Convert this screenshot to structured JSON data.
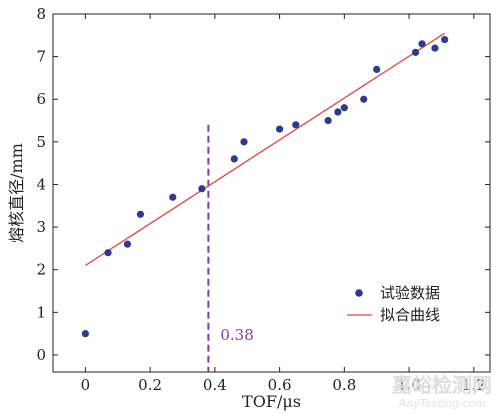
{
  "chart_data": {
    "type": "scatter",
    "xlabel": "TOF/μs",
    "ylabel": "熔核直径/mm",
    "xlim": [
      -0.1,
      1.25
    ],
    "ylim": [
      -0.4,
      8
    ],
    "xticks": [
      0,
      0.2,
      0.4,
      0.6,
      0.8,
      1.0,
      1.2
    ],
    "xtick_labels": [
      "0",
      "0.2",
      "0.4",
      "0.6",
      "0.8",
      "1.0",
      "1.2"
    ],
    "yticks": [
      0,
      1,
      2,
      3,
      4,
      5,
      6,
      7,
      8
    ],
    "ytick_labels": [
      "0",
      "1",
      "2",
      "3",
      "4",
      "5",
      "6",
      "7",
      "8"
    ],
    "grid": false,
    "legend_position": "bottom-right",
    "series": [
      {
        "name": "试验数据",
        "type": "scatter",
        "color": "#2e3a8c",
        "x": [
          0.0,
          0.07,
          0.13,
          0.17,
          0.27,
          0.36,
          0.46,
          0.49,
          0.6,
          0.65,
          0.75,
          0.78,
          0.8,
          0.86,
          0.9,
          1.02,
          1.04,
          1.08,
          1.11
        ],
        "y": [
          0.5,
          2.4,
          2.6,
          3.3,
          3.7,
          3.9,
          4.6,
          5.0,
          5.3,
          5.4,
          5.5,
          5.7,
          5.8,
          6.0,
          6.7,
          7.1,
          7.3,
          7.2,
          7.4
        ]
      },
      {
        "name": "拟合曲线",
        "type": "line",
        "color": "#e8473f",
        "x": [
          0.0,
          1.11
        ],
        "y": [
          2.1,
          7.55
        ]
      }
    ],
    "annotations": [
      {
        "type": "vline",
        "x": 0.38,
        "label": "0.38",
        "color": "#7a3fa8",
        "ymin": -0.4,
        "ymax": 5.4
      }
    ]
  },
  "watermark": {
    "text": "嘉峪检测网",
    "sub": "AnyTesting.com"
  }
}
